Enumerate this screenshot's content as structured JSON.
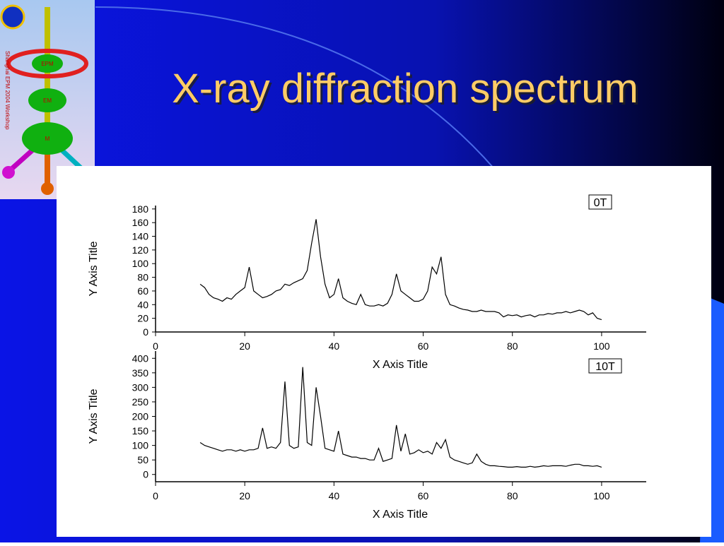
{
  "title": "X-ray diffraction spectrum",
  "logo": {
    "caption": "Shanghai EPM 2004 Workshop",
    "labels": [
      "EPM",
      "EM",
      "M"
    ]
  },
  "chart_data": [
    {
      "type": "line",
      "annotation": "0T",
      "xlabel": "X Axis Title",
      "ylabel": "Y Axis Title",
      "color": "#000000",
      "x": [
        10,
        11,
        12,
        13,
        14,
        15,
        16,
        17,
        18,
        19,
        20,
        21,
        22,
        23,
        24,
        25,
        26,
        27,
        28,
        29,
        30,
        31,
        32,
        33,
        34,
        35,
        36,
        37,
        38,
        39,
        40,
        41,
        42,
        43,
        44,
        45,
        46,
        47,
        48,
        49,
        50,
        51,
        52,
        53,
        54,
        55,
        56,
        57,
        58,
        59,
        60,
        61,
        62,
        63,
        64,
        65,
        66,
        67,
        68,
        69,
        70,
        71,
        72,
        73,
        74,
        75,
        76,
        77,
        78,
        79,
        80,
        81,
        82,
        83,
        84,
        85,
        86,
        87,
        88,
        89,
        90,
        91,
        92,
        93,
        94,
        95,
        96,
        97,
        98,
        99,
        100
      ],
      "values": [
        70,
        65,
        55,
        50,
        48,
        45,
        50,
        48,
        55,
        60,
        65,
        95,
        60,
        55,
        50,
        52,
        55,
        60,
        62,
        70,
        68,
        72,
        75,
        78,
        90,
        130,
        165,
        110,
        70,
        50,
        55,
        78,
        50,
        45,
        42,
        40,
        55,
        40,
        38,
        38,
        40,
        38,
        42,
        55,
        85,
        60,
        55,
        50,
        45,
        45,
        48,
        60,
        95,
        85,
        110,
        55,
        40,
        38,
        35,
        33,
        32,
        30,
        30,
        32,
        30,
        30,
        30,
        28,
        22,
        25,
        24,
        25,
        22,
        24,
        25,
        22,
        25,
        25,
        27,
        26,
        28,
        28,
        30,
        28,
        30,
        32,
        30,
        25,
        28,
        20,
        18
      ],
      "xlim": [
        0,
        110
      ],
      "xticks": [
        0,
        20,
        40,
        60,
        80,
        100
      ],
      "ylim": [
        0,
        185
      ],
      "yticks": [
        0,
        20,
        40,
        60,
        80,
        100,
        120,
        140,
        160,
        180
      ]
    },
    {
      "type": "line",
      "annotation": "10T",
      "xlabel": "X Axis Title",
      "ylabel": "Y Axis Title",
      "color": "#000000",
      "x": [
        10,
        11,
        12,
        13,
        14,
        15,
        16,
        17,
        18,
        19,
        20,
        21,
        22,
        23,
        24,
        25,
        26,
        27,
        28,
        29,
        30,
        31,
        32,
        33,
        34,
        35,
        36,
        37,
        38,
        39,
        40,
        41,
        42,
        43,
        44,
        45,
        46,
        47,
        48,
        49,
        50,
        51,
        52,
        53,
        54,
        55,
        56,
        57,
        58,
        59,
        60,
        61,
        62,
        63,
        64,
        65,
        66,
        67,
        68,
        69,
        70,
        71,
        72,
        73,
        74,
        75,
        76,
        77,
        78,
        79,
        80,
        81,
        82,
        83,
        84,
        85,
        86,
        87,
        88,
        89,
        90,
        91,
        92,
        93,
        94,
        95,
        96,
        97,
        98,
        99,
        100
      ],
      "values": [
        110,
        100,
        95,
        90,
        85,
        80,
        85,
        85,
        80,
        85,
        80,
        85,
        85,
        90,
        160,
        90,
        95,
        90,
        110,
        320,
        100,
        90,
        95,
        370,
        110,
        100,
        300,
        200,
        90,
        85,
        80,
        150,
        70,
        65,
        60,
        60,
        55,
        55,
        50,
        50,
        90,
        45,
        50,
        55,
        170,
        80,
        140,
        70,
        75,
        85,
        75,
        80,
        70,
        110,
        90,
        120,
        60,
        50,
        45,
        40,
        35,
        40,
        70,
        45,
        35,
        30,
        30,
        28,
        27,
        25,
        25,
        27,
        25,
        25,
        28,
        25,
        27,
        30,
        28,
        30,
        30,
        30,
        28,
        32,
        35,
        35,
        30,
        30,
        28,
        30,
        25
      ],
      "xlim": [
        0,
        110
      ],
      "xticks": [
        0,
        20,
        40,
        60,
        80,
        100
      ],
      "ylim": [
        -25,
        425
      ],
      "yticks": [
        0,
        50,
        100,
        150,
        200,
        250,
        300,
        350,
        400
      ]
    }
  ]
}
